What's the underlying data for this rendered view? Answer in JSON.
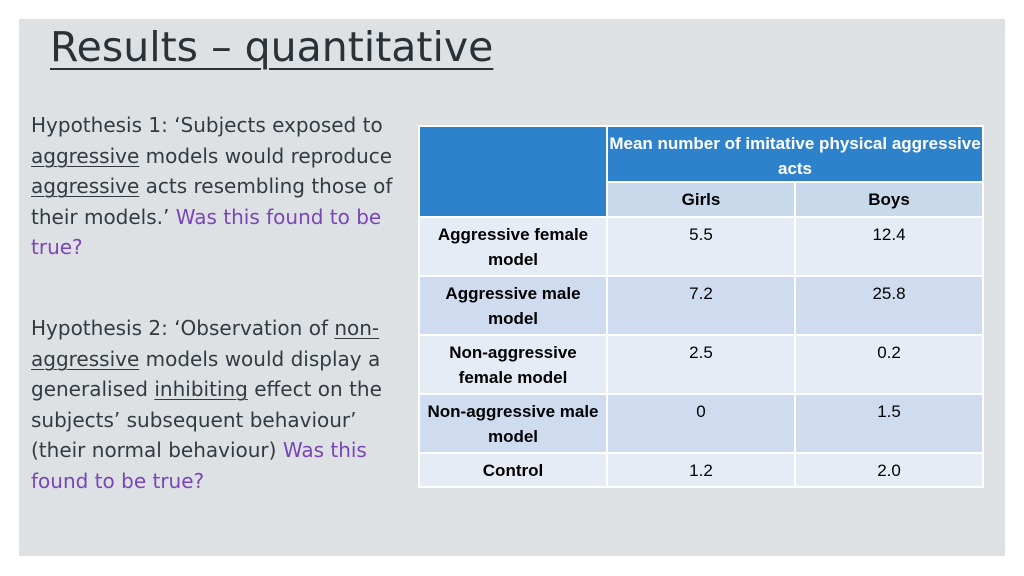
{
  "title": "Results – quantitative",
  "hypothesis1": {
    "t1": "Hypothesis 1: ‘Subjects exposed to ",
    "u1": "aggressive",
    "t2": " models would reproduce ",
    "u2": "aggressive",
    "t3": " acts resembling those of their models.’",
    "question": "Was this found to be true?"
  },
  "hypothesis2": {
    "t1": "Hypothesis 2: ‘Observation of ",
    "u1": "non-aggressive",
    "t2": " models would display a generalised ",
    "u2": "inhibiting",
    "t3": " effect on the subjects’ subsequent behaviour’ (their normal behaviour) ",
    "question": "Was this found to be true?"
  },
  "table": {
    "header": "Mean number of imitative physical aggressive acts",
    "columns": [
      "Girls",
      "Boys"
    ],
    "rows": [
      {
        "label": "Aggressive female model",
        "girls": "5.5",
        "boys": "12.4"
      },
      {
        "label": "Aggressive male model",
        "girls": "7.2",
        "boys": "25.8"
      },
      {
        "label": "Non-aggressive female model",
        "girls": "2.5",
        "boys": "0.2"
      },
      {
        "label": "Non-aggressive male model",
        "girls": "0",
        "boys": "1.5"
      },
      {
        "label": "Control",
        "girls": "1.2",
        "boys": "2.0"
      }
    ]
  },
  "colors": {
    "header_blue": "#2e82cc",
    "question_purple": "#7a45b8",
    "panel_grey": "#dde1e3"
  }
}
